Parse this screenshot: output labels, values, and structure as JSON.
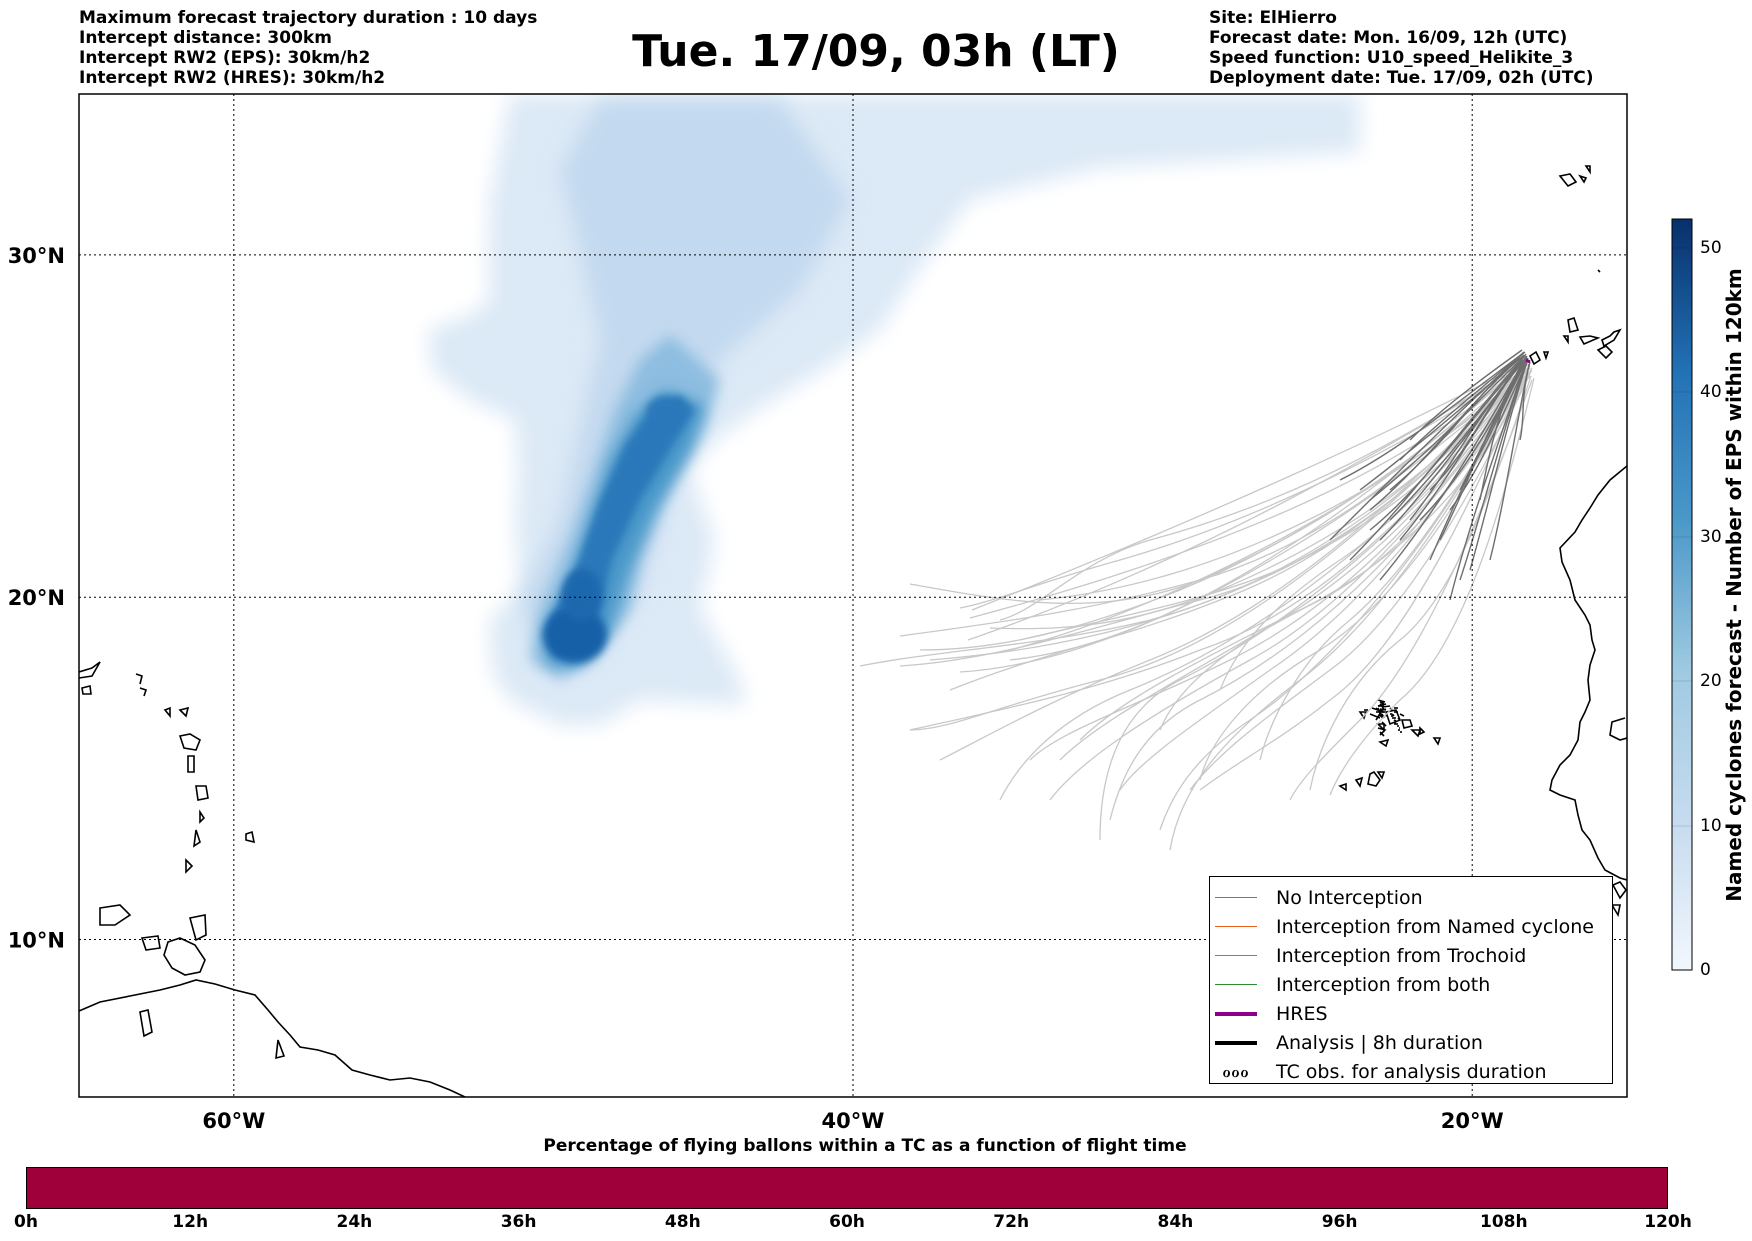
{
  "header": {
    "left_lines": [
      "Maximum forecast trajectory duration : 10 days",
      "Intercept distance: 300km",
      "Intercept RW2 (EPS):  30km/h2",
      "Intercept RW2 (HRES): 30km/h2"
    ],
    "right_lines": [
      "Site: ElHierro",
      "Forecast date: Mon. 16/09, 12h (UTC)",
      "Speed function: U10_speed_Helikite_3",
      "Deployment date: Tue. 17/09, 02h (UTC)"
    ],
    "title": "Tue. 17/09, 03h (LT)"
  },
  "map": {
    "lon_range": [
      -65,
      -15
    ],
    "lat_range": [
      5.4,
      34.7
    ],
    "lon_ticks": [
      {
        "value": -60,
        "label": "60°W"
      },
      {
        "value": -40,
        "label": "40°W"
      },
      {
        "value": -20,
        "label": "20°W"
      }
    ],
    "lat_ticks": [
      {
        "value": 30,
        "label": "30°N"
      },
      {
        "value": 20,
        "label": "20°N"
      },
      {
        "value": 10,
        "label": "10°N"
      }
    ],
    "grid": "dotted",
    "launch_site": {
      "name": "ElHierro",
      "lon": -18.0,
      "lat": 27.5
    }
  },
  "legend": {
    "placement": "lower-right",
    "items": [
      {
        "label": "No Interception",
        "color": "#777777",
        "style": "line"
      },
      {
        "label": "Interception from Named cyclone",
        "color": "#e8601c",
        "style": "line"
      },
      {
        "label": "Interception from Trochoid",
        "color": "#8a8a2a",
        "style": "line"
      },
      {
        "label": "Interception from both",
        "color": "#2e8b2e",
        "style": "line"
      },
      {
        "label": "HRES",
        "color": "#8b008b",
        "style": "thick-line"
      },
      {
        "label": "Analysis | 8h duration",
        "color": "#000000",
        "style": "thick-line"
      },
      {
        "label": "TC obs. for analysis duration",
        "color": "#000000",
        "style": "symbol",
        "symbol": "ℴℴℴ"
      }
    ]
  },
  "colorbar": {
    "label": "Named cyclones forecast - Number of EPS within 120km",
    "min": 0,
    "max": 52,
    "ticks": [
      "0",
      "10",
      "20",
      "30",
      "40",
      "50"
    ],
    "colors": [
      "#e8f1fa",
      "#08306b"
    ]
  },
  "flight_bar": {
    "title": "Percentage of flying ballons within a TC as a function of flight time",
    "ticks": [
      "0h",
      "12h",
      "24h",
      "36h",
      "48h",
      "60h",
      "72h",
      "84h",
      "96h",
      "108h",
      "120h"
    ],
    "color": "#a0003a"
  },
  "chart_data": {
    "type": "heatmap",
    "description_units": "count of EPS members within 120km",
    "density_core": [
      {
        "lon": -49.0,
        "lat": 19.2,
        "value": 48
      },
      {
        "lon": -48.2,
        "lat": 22.0,
        "value": 36
      },
      {
        "lon": -46.5,
        "lat": 25.0,
        "value": 30
      },
      {
        "lon": -45.5,
        "lat": 26.5,
        "value": 28
      }
    ],
    "trajectories": {
      "count_dark": 25,
      "count_light": 40,
      "origin": {
        "lon": -18.0,
        "lat": 27.5
      }
    }
  }
}
